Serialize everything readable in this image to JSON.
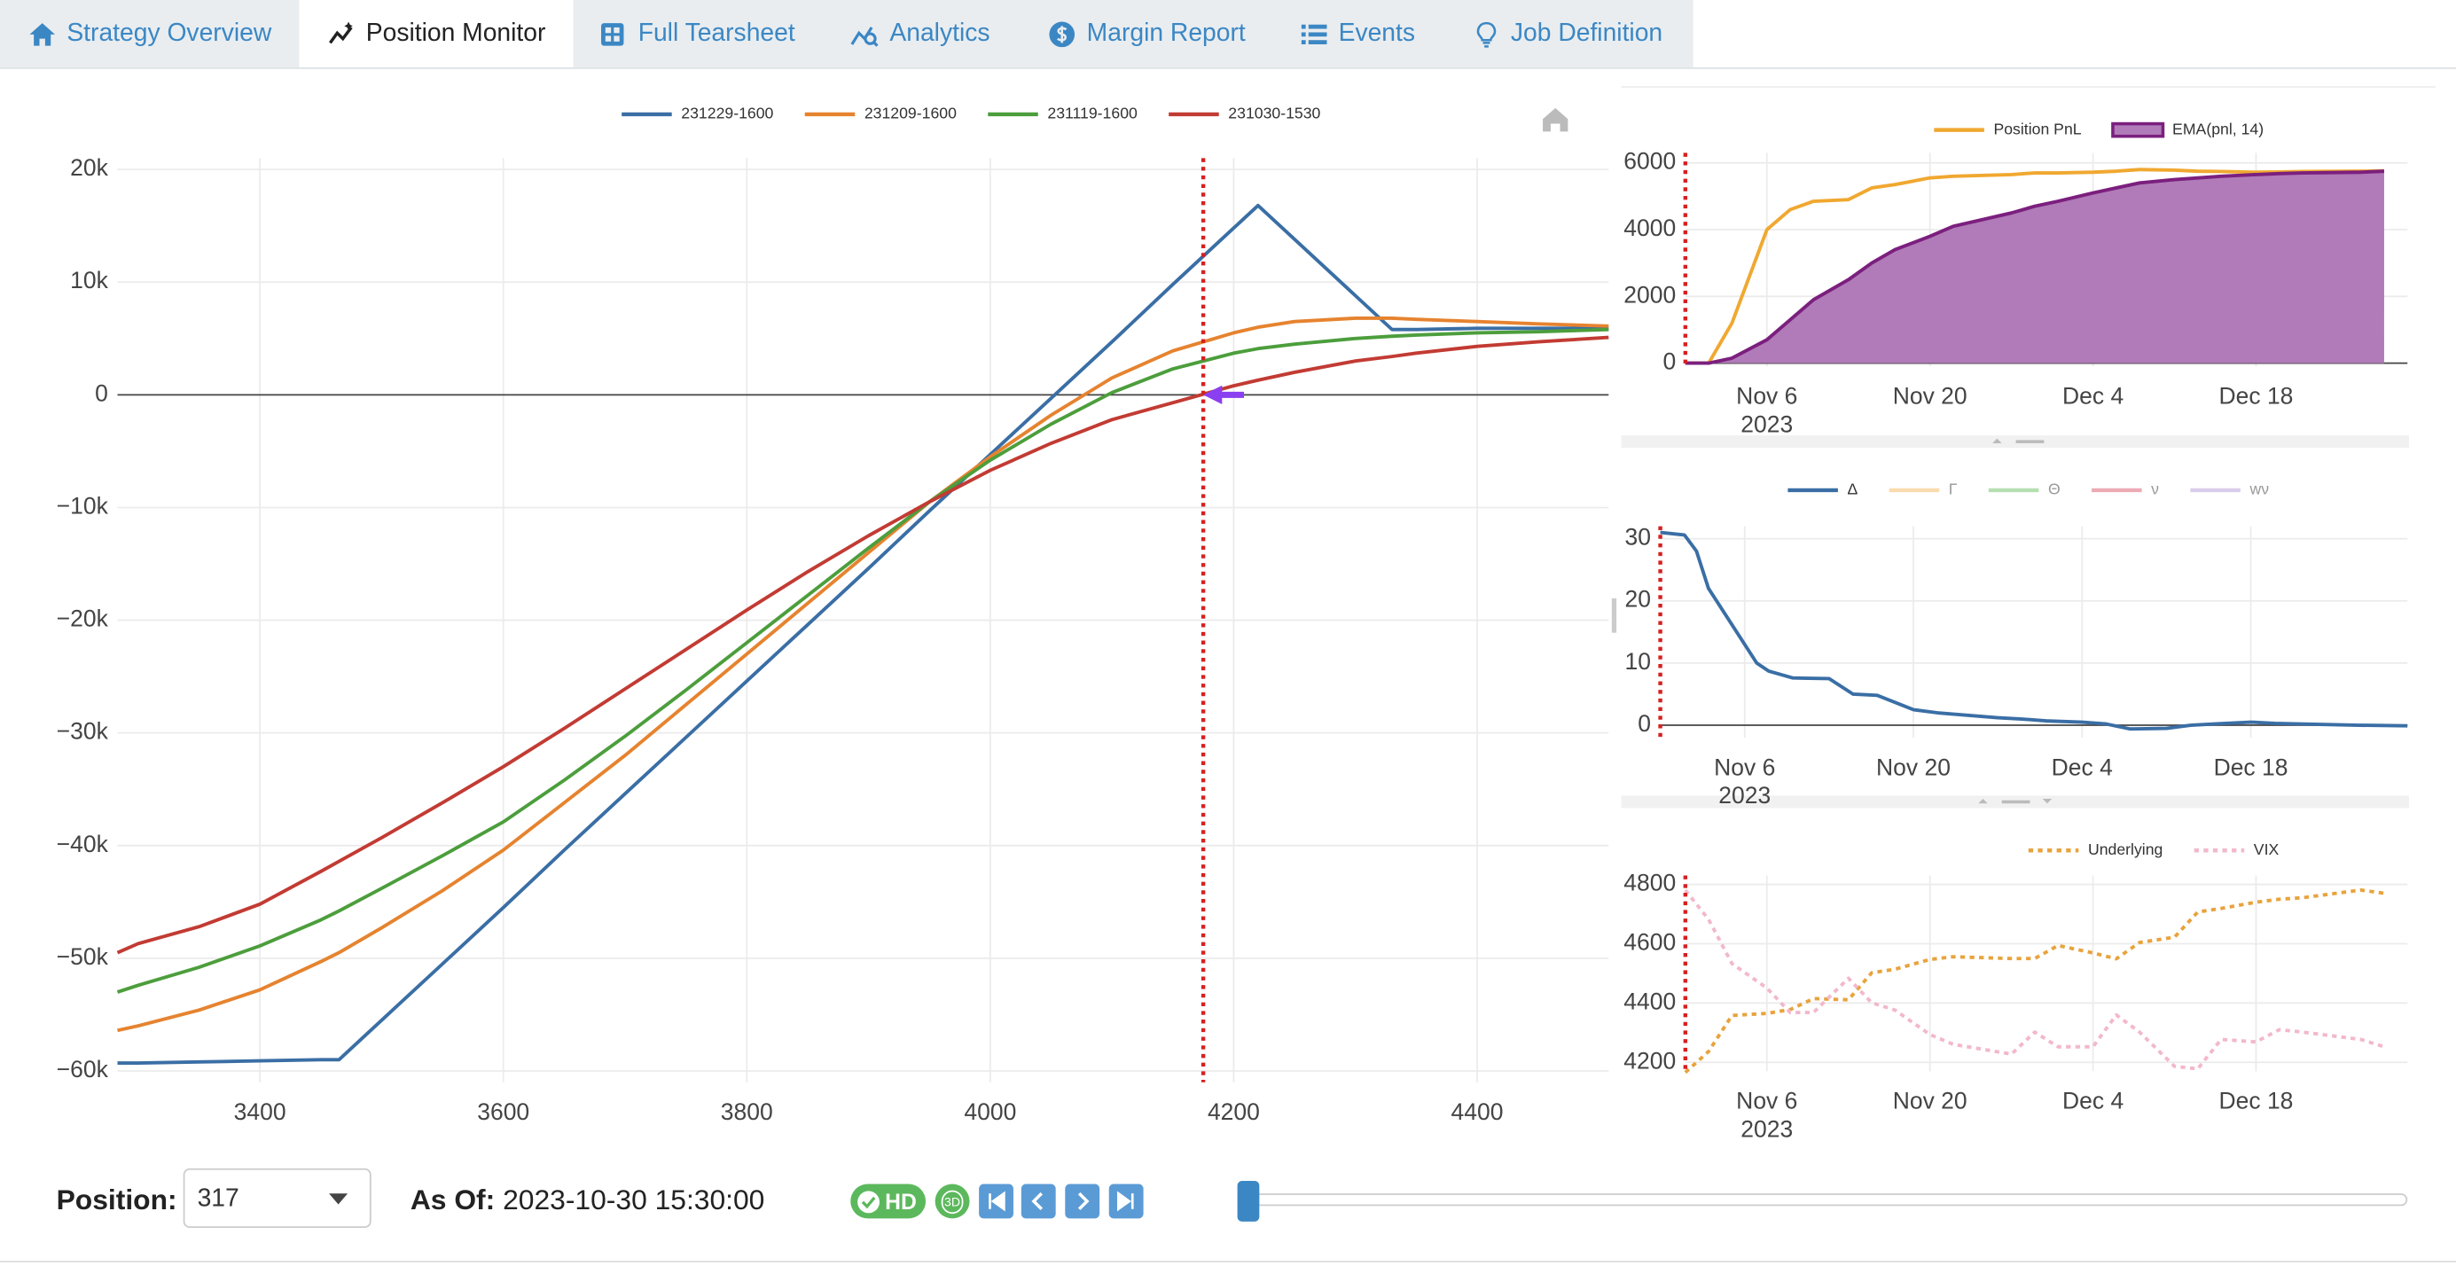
{
  "tabs": [
    {
      "label": "Strategy Overview"
    },
    {
      "label": "Position Monitor",
      "active": true
    },
    {
      "label": "Full Tearsheet"
    },
    {
      "label": "Analytics"
    },
    {
      "label": "Margin Report"
    },
    {
      "label": "Events"
    },
    {
      "label": "Job Definition"
    }
  ],
  "chart_data": [
    {
      "type": "line",
      "grid": true,
      "x": [
        3283,
        3300,
        3350,
        3400,
        3450,
        3465,
        3500,
        3550,
        3600,
        3650,
        3700,
        3750,
        3800,
        3850,
        3900,
        3950,
        4000,
        4050,
        4100,
        4150,
        4200,
        4220,
        4250,
        4300,
        4330,
        4350,
        4400,
        4450,
        4508
      ],
      "xlim": [
        3283,
        4508
      ],
      "xticks": [
        3400,
        3600,
        3800,
        4000,
        4200,
        4400
      ],
      "ylim": [
        -61000,
        21000
      ],
      "yticks": [
        {
          "value": 20000,
          "label": "20k"
        },
        {
          "value": 10000,
          "label": "10k"
        },
        0,
        {
          "value": -10000,
          "label": "−10k"
        },
        {
          "value": -20000,
          "label": "−20k"
        },
        {
          "value": -30000,
          "label": "−30k"
        },
        {
          "value": -40000,
          "label": "−40k"
        },
        {
          "value": -50000,
          "label": "−50k"
        },
        {
          "value": -60000,
          "label": "−60k"
        }
      ],
      "vline": 4175,
      "marker": {
        "x": 4175,
        "y": 0
      },
      "series": [
        {
          "name": "231229-1600",
          "color": "#3a6ea5",
          "values": [
            -59300,
            -59300,
            -59200,
            -59100,
            -59000,
            -59000,
            -55500,
            -50500,
            -45500,
            -40400,
            -35400,
            -30400,
            -25400,
            -20400,
            -15400,
            -10300,
            -5300,
            -300,
            4700,
            9800,
            14800,
            16800,
            13800,
            8800,
            5800,
            5800,
            5900,
            5900,
            5900
          ]
        },
        {
          "name": "231209-1600",
          "color": "#e6832f",
          "values": [
            -56400,
            -56000,
            -54600,
            -52800,
            -50300,
            -49500,
            -47300,
            -44000,
            -40400,
            -36200,
            -32000,
            -27500,
            -23000,
            -18500,
            -14000,
            -9500,
            -5500,
            -1800,
            1500,
            3900,
            5500,
            6000,
            6500,
            6800,
            6800,
            6700,
            6500,
            6300,
            6100
          ]
        },
        {
          "name": "231119-1600",
          "color": "#4c9e3c",
          "values": [
            -53000,
            -52400,
            -50800,
            -48900,
            -46600,
            -45800,
            -43800,
            -40900,
            -37900,
            -34200,
            -30300,
            -26200,
            -22000,
            -17800,
            -13600,
            -9500,
            -5800,
            -2600,
            200,
            2300,
            3700,
            4100,
            4500,
            5000,
            5200,
            5300,
            5500,
            5600,
            5800
          ]
        },
        {
          "name": "231030-1530",
          "color": "#c23b33",
          "values": [
            -49500,
            -48700,
            -47200,
            -45200,
            -42300,
            -41400,
            -39300,
            -36200,
            -33000,
            -29600,
            -26100,
            -22600,
            -19100,
            -15700,
            -12500,
            -9500,
            -6700,
            -4300,
            -2200,
            -700,
            800,
            1300,
            2000,
            3000,
            3400,
            3700,
            4300,
            4700,
            5100
          ]
        }
      ]
    },
    {
      "type": "line",
      "grid": true,
      "x": [
        "2023-10-30",
        "2023-11-01",
        "2023-11-03",
        "2023-11-06",
        "2023-11-08",
        "2023-11-10",
        "2023-11-13",
        "2023-11-15",
        "2023-11-17",
        "2023-11-20",
        "2023-11-22",
        "2023-11-27",
        "2023-11-29",
        "2023-12-01",
        "2023-12-04",
        "2023-12-06",
        "2023-12-08",
        "2023-12-11",
        "2023-12-13",
        "2023-12-15",
        "2023-12-18",
        "2023-12-20",
        "2023-12-22",
        "2023-12-27",
        "2023-12-29"
      ],
      "xlim": [
        "2023-10-30",
        "2023-12-31"
      ],
      "xticks": [
        {
          "value": "2023-11-06",
          "label": [
            "Nov 6",
            "2023"
          ]
        },
        {
          "value": "2023-11-20",
          "label": "Nov 20"
        },
        {
          "value": "2023-12-04",
          "label": "Dec 4"
        },
        {
          "value": "2023-12-18",
          "label": "Dec 18"
        }
      ],
      "ylim": [
        -100,
        6300
      ],
      "yticks": [
        0,
        2000,
        4000,
        6000
      ],
      "vline": "2023-10-30",
      "series": [
        {
          "name": "Position PnL",
          "color": "#f0a830",
          "values": [
            0,
            0,
            1200,
            4000,
            4600,
            4850,
            4900,
            5250,
            5350,
            5550,
            5600,
            5650,
            5700,
            5700,
            5720,
            5750,
            5800,
            5780,
            5750,
            5740,
            5720,
            5730,
            5740,
            5750,
            5760
          ]
        },
        {
          "name": "EMA(pnl, 14)",
          "color": "#7b1f7e",
          "fill": "#b07bb8",
          "values": [
            0,
            0,
            150,
            700,
            1300,
            1900,
            2500,
            3000,
            3400,
            3800,
            4100,
            4500,
            4700,
            4850,
            5100,
            5250,
            5400,
            5500,
            5550,
            5600,
            5650,
            5680,
            5700,
            5720,
            5750
          ]
        }
      ]
    },
    {
      "type": "line",
      "grid": true,
      "x": [
        "2023-10-30",
        "2023-11-01",
        "2023-11-02",
        "2023-11-03",
        "2023-11-06",
        "2023-11-07",
        "2023-11-08",
        "2023-11-10",
        "2023-11-13",
        "2023-11-15",
        "2023-11-17",
        "2023-11-20",
        "2023-11-22",
        "2023-11-27",
        "2023-11-29",
        "2023-12-01",
        "2023-12-04",
        "2023-12-06",
        "2023-12-08",
        "2023-12-11",
        "2023-12-13",
        "2023-12-15",
        "2023-12-18",
        "2023-12-20",
        "2023-12-22",
        "2023-12-27",
        "2023-12-31"
      ],
      "xlim": [
        "2023-10-30",
        "2023-12-31"
      ],
      "xticks": [
        {
          "value": "2023-11-06",
          "label": [
            "Nov 6",
            "2023"
          ]
        },
        {
          "value": "2023-11-20",
          "label": "Nov 20"
        },
        {
          "value": "2023-12-04",
          "label": "Dec 4"
        },
        {
          "value": "2023-12-18",
          "label": "Dec 18"
        }
      ],
      "ylim": [
        -2,
        32
      ],
      "yticks": [
        0,
        10,
        20,
        30
      ],
      "vline": "2023-10-30",
      "series": [
        {
          "name": "Δ",
          "color": "#3a6ea5",
          "values": [
            31,
            30.6,
            28,
            22,
            13,
            10,
            8.7,
            7.6,
            7.5,
            5,
            4.8,
            2.5,
            2,
            1.2,
            1,
            0.7,
            0.5,
            0.2,
            -0.6,
            -0.5,
            0,
            0.2,
            0.5,
            0.3,
            0.2,
            0,
            -0.1
          ]
        },
        {
          "name": "Γ",
          "color": "#f5b75e",
          "visible": false
        },
        {
          "name": "Θ",
          "color": "#6cbf62",
          "visible": false
        },
        {
          "name": "ν",
          "color": "#d9596a",
          "visible": false
        },
        {
          "name": "wν",
          "color": "#b59ad8",
          "visible": false
        }
      ]
    },
    {
      "type": "line",
      "grid": true,
      "x": [
        "2023-10-30",
        "2023-11-01",
        "2023-11-03",
        "2023-11-06",
        "2023-11-08",
        "2023-11-10",
        "2023-11-13",
        "2023-11-15",
        "2023-11-17",
        "2023-11-20",
        "2023-11-22",
        "2023-11-27",
        "2023-11-29",
        "2023-12-01",
        "2023-12-04",
        "2023-12-06",
        "2023-12-08",
        "2023-12-11",
        "2023-12-13",
        "2023-12-15",
        "2023-12-18",
        "2023-12-20",
        "2023-12-22",
        "2023-12-27",
        "2023-12-29"
      ],
      "xlim": [
        "2023-10-30",
        "2023-12-31"
      ],
      "xticks": [
        {
          "value": "2023-11-06",
          "label": [
            "Nov 6",
            "2023"
          ]
        },
        {
          "value": "2023-11-20",
          "label": "Nov 20"
        },
        {
          "value": "2023-12-04",
          "label": "Dec 4"
        },
        {
          "value": "2023-12-18",
          "label": "Dec 18"
        }
      ],
      "ylim": [
        4170,
        4830
      ],
      "yticks": [
        4200,
        4400,
        4600,
        4800
      ],
      "y2lim": [
        12,
        20
      ],
      "vline": "2023-10-30",
      "series": [
        {
          "name": "Underlying",
          "color": "#e8a33d",
          "dash": "dot",
          "values": [
            4166,
            4237,
            4358,
            4365,
            4378,
            4415,
            4411,
            4502,
            4514,
            4547,
            4556,
            4550,
            4550,
            4594,
            4569,
            4549,
            4604,
            4622,
            4707,
            4719,
            4740,
            4750,
            4755,
            4781,
            4770
          ]
        },
        {
          "name": "VIX",
          "color": "#f2b8cc",
          "dash": "dot",
          "axis": "y2",
          "values": [
            19.4,
            18.2,
            16.4,
            15.4,
            14.4,
            14.4,
            15.8,
            14.8,
            14.5,
            13.5,
            13.1,
            12.7,
            13.6,
            13.0,
            13.0,
            14.3,
            13.6,
            12.2,
            12.1,
            13.3,
            13.2,
            13.7,
            13.6,
            13.3,
            13.0
          ]
        }
      ]
    }
  ],
  "controls": {
    "position_label": "Position:",
    "position_value": "317",
    "as_of_label": "As Of:",
    "as_of_value": "2023-10-30 15:30:00",
    "hd_label": "HD",
    "td_label": "3D"
  }
}
